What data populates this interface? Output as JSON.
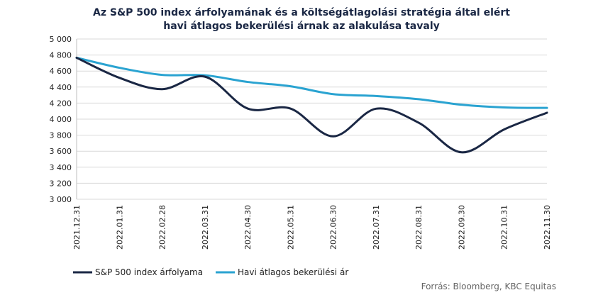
{
  "chart_data": {
    "type": "line",
    "title_lines": [
      "Az S&P 500 index árfolyamának és a költségátlagolási stratégia által elért",
      "havi átlagos bekerülési árnak az alakulása tavaly"
    ],
    "categories": [
      "2021.12.31",
      "2022.01.31",
      "2022.02.28",
      "2022.03.31",
      "2022.04.30",
      "2022.05.31",
      "2022.06.30",
      "2022.07.31",
      "2022.08.31",
      "2022.09.30",
      "2022.10.31",
      "2022.11.30"
    ],
    "y_ticks": [
      3000,
      3200,
      3400,
      3600,
      3800,
      4000,
      4200,
      4400,
      4600,
      4800,
      5000
    ],
    "y_tick_labels": [
      "3 000",
      "3 200",
      "3 400",
      "3 600",
      "3 800",
      "4 000",
      "4 200",
      "4 400",
      "4 600",
      "4 800",
      "5 000"
    ],
    "ylim": [
      3000,
      5000
    ],
    "grid": true,
    "legend_position": "bottom-left",
    "series": [
      {
        "name": "S&P 500 index árfolyama",
        "color": "#1a2744",
        "values": [
          4766,
          4516,
          4374,
          4530,
          4132,
          4132,
          3785,
          4130,
          3955,
          3586,
          3872,
          4080
        ]
      },
      {
        "name": "Havi átlagos bekerülési ár",
        "color": "#2aa3d1",
        "values": [
          4766,
          4641,
          4552,
          4547,
          4464,
          4410,
          4312,
          4289,
          4249,
          4180,
          4146,
          4140
        ]
      }
    ],
    "source": "Forrás: Bloomberg, KBC Equitas"
  }
}
